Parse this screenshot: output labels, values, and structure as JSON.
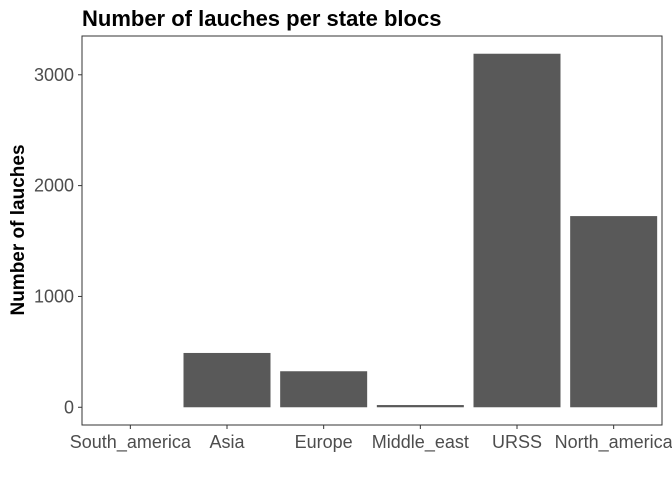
{
  "chart_data": {
    "type": "bar",
    "title": "Number of lauches per state blocs",
    "xlabel": "",
    "ylabel": "Number of lauches",
    "categories": [
      "South_america",
      "Asia",
      "Europe",
      "Middle_east",
      "URSS",
      "North_america"
    ],
    "values": [
      0,
      490,
      325,
      20,
      3190,
      1725
    ],
    "ylim": [
      -160,
      3350
    ],
    "yticks": [
      0,
      1000,
      2000,
      3000
    ],
    "grid": false,
    "legend": "none",
    "bar_color": "#595959",
    "axis_color": "#333333",
    "tick_color": "#4d4d4d"
  }
}
